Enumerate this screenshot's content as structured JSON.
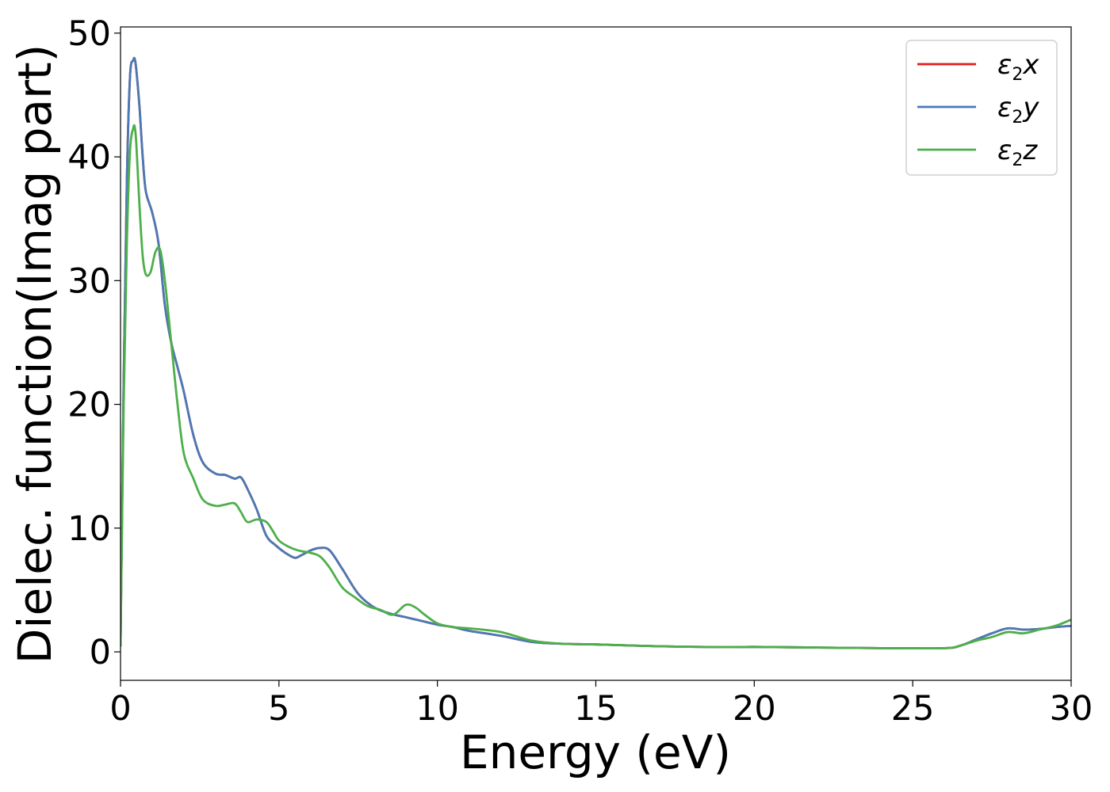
{
  "chart_data": {
    "type": "line",
    "title": "",
    "xlabel": "Energy (eV)",
    "ylabel": "Dielec. function(Imag part)",
    "xlim": [
      0,
      30
    ],
    "ylim": [
      -2.3,
      50.5
    ],
    "xticks": [
      0,
      5,
      10,
      15,
      20,
      25,
      30
    ],
    "yticks": [
      0,
      10,
      20,
      30,
      40,
      50
    ],
    "grid": false,
    "legend_position": "top-right",
    "series": [
      {
        "name": "ε2x",
        "legend_base": "ε",
        "legend_sub": "2",
        "legend_var": "x",
        "color": "#e41a1c",
        "x": [
          0,
          0.1,
          0.2,
          0.3,
          0.4,
          0.45,
          0.5,
          0.6,
          0.7,
          0.8,
          1.0,
          1.2,
          1.4,
          1.6,
          1.8,
          2.0,
          2.3,
          2.6,
          3.0,
          3.3,
          3.6,
          3.8,
          4.0,
          4.3,
          4.6,
          4.9,
          5.2,
          5.5,
          5.7,
          6.0,
          6.3,
          6.6,
          7.0,
          7.5,
          8.0,
          8.5,
          9.0,
          9.5,
          10.0,
          10.5,
          11.0,
          12.0,
          13.0,
          14.0,
          15.0,
          17.0,
          19.0,
          20.0,
          22.0,
          24.0,
          26.0,
          26.5,
          27.0,
          27.5,
          28.0,
          28.5,
          29.0,
          29.5,
          30.0
        ],
        "values": [
          0.5,
          22,
          38,
          46.5,
          47.8,
          47.9,
          47,
          44,
          40,
          37.2,
          35.5,
          33,
          28,
          25,
          23,
          21,
          17.5,
          15.3,
          14.4,
          14.3,
          14.0,
          14.1,
          13.2,
          11.5,
          9.4,
          8.6,
          8.0,
          7.6,
          7.8,
          8.2,
          8.4,
          8.2,
          6.7,
          4.7,
          3.6,
          3.1,
          2.8,
          2.5,
          2.2,
          2.0,
          1.7,
          1.3,
          0.8,
          0.65,
          0.6,
          0.45,
          0.38,
          0.4,
          0.35,
          0.3,
          0.3,
          0.5,
          1.0,
          1.5,
          1.9,
          1.8,
          1.85,
          2.0,
          2.1
        ]
      },
      {
        "name": "ε2y",
        "legend_base": "ε",
        "legend_sub": "2",
        "legend_var": "y",
        "color": "#4a7ab5",
        "x": [
          0,
          0.1,
          0.2,
          0.3,
          0.4,
          0.45,
          0.5,
          0.6,
          0.7,
          0.8,
          1.0,
          1.2,
          1.4,
          1.6,
          1.8,
          2.0,
          2.3,
          2.6,
          3.0,
          3.3,
          3.6,
          3.8,
          4.0,
          4.3,
          4.6,
          4.9,
          5.2,
          5.5,
          5.7,
          6.0,
          6.3,
          6.6,
          7.0,
          7.5,
          8.0,
          8.5,
          9.0,
          9.5,
          10.0,
          10.5,
          11.0,
          12.0,
          13.0,
          14.0,
          15.0,
          17.0,
          19.0,
          20.0,
          22.0,
          24.0,
          26.0,
          26.5,
          27.0,
          27.5,
          28.0,
          28.5,
          29.0,
          29.5,
          30.0
        ],
        "values": [
          0.5,
          22,
          38,
          46.5,
          47.8,
          47.9,
          47,
          44,
          40,
          37.2,
          35.5,
          33,
          28,
          25,
          23,
          21,
          17.5,
          15.3,
          14.4,
          14.3,
          14.0,
          14.1,
          13.2,
          11.5,
          9.4,
          8.6,
          8.0,
          7.6,
          7.8,
          8.2,
          8.4,
          8.2,
          6.7,
          4.7,
          3.6,
          3.1,
          2.8,
          2.5,
          2.2,
          2.0,
          1.7,
          1.3,
          0.8,
          0.65,
          0.6,
          0.45,
          0.38,
          0.4,
          0.35,
          0.3,
          0.3,
          0.5,
          1.0,
          1.5,
          1.9,
          1.8,
          1.85,
          2.0,
          2.1
        ]
      },
      {
        "name": "ε2z",
        "legend_base": "ε",
        "legend_sub": "2",
        "legend_var": "z",
        "color": "#4daf4a",
        "x": [
          0,
          0.1,
          0.2,
          0.3,
          0.4,
          0.45,
          0.5,
          0.6,
          0.7,
          0.8,
          0.95,
          1.1,
          1.25,
          1.4,
          1.6,
          1.8,
          2.0,
          2.3,
          2.6,
          3.0,
          3.3,
          3.6,
          3.8,
          4.0,
          4.3,
          4.6,
          4.8,
          5.0,
          5.3,
          5.6,
          6.0,
          6.3,
          6.6,
          7.0,
          7.4,
          7.8,
          8.2,
          8.6,
          9.0,
          9.3,
          9.6,
          10.0,
          10.5,
          11.0,
          12.0,
          13.0,
          14.0,
          15.0,
          17.0,
          19.0,
          20.0,
          22.0,
          24.0,
          26.0,
          26.5,
          27.0,
          27.5,
          28.0,
          28.5,
          29.0,
          29.5,
          30.0
        ],
        "values": [
          0.5,
          20,
          33,
          40.5,
          42.3,
          42.4,
          41,
          36,
          32,
          30.5,
          30.7,
          32.3,
          32.5,
          30,
          25,
          20,
          16,
          14,
          12.3,
          11.8,
          11.9,
          12.0,
          11.3,
          10.5,
          10.7,
          10.5,
          9.8,
          9.0,
          8.5,
          8.2,
          8.0,
          7.7,
          6.8,
          5.2,
          4.4,
          3.7,
          3.4,
          3.0,
          3.8,
          3.6,
          3.0,
          2.3,
          2.0,
          1.9,
          1.6,
          0.9,
          0.65,
          0.6,
          0.45,
          0.38,
          0.4,
          0.35,
          0.3,
          0.3,
          0.5,
          0.9,
          1.2,
          1.6,
          1.5,
          1.8,
          2.1,
          2.6
        ]
      }
    ]
  }
}
